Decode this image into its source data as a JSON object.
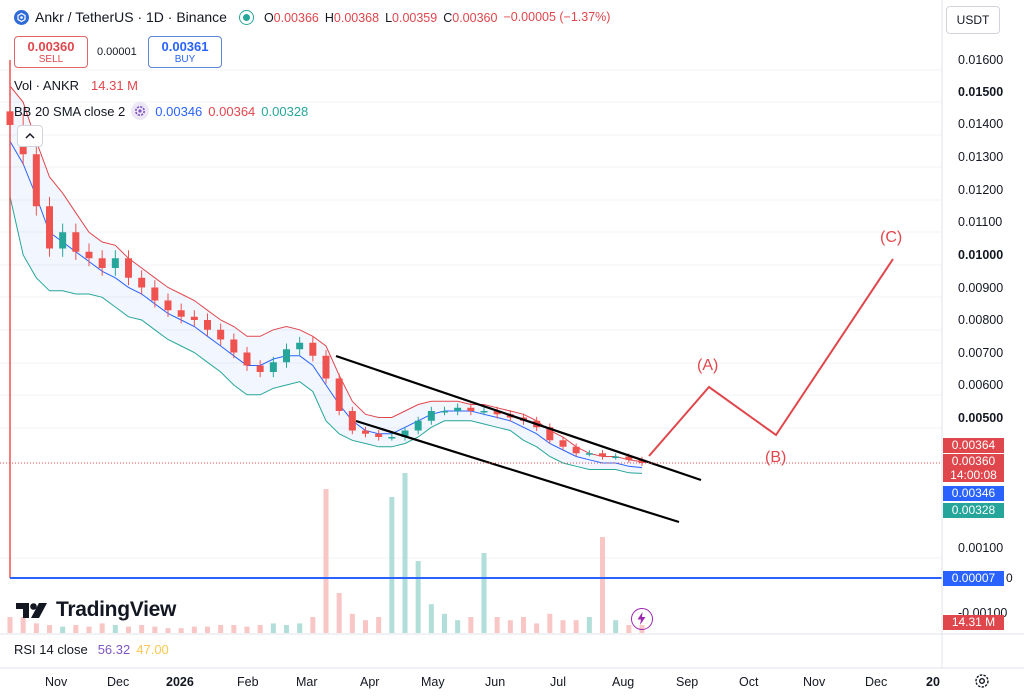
{
  "header": {
    "symbol": "Ankr / TetherUS · 1D · Binance",
    "open_label": "O",
    "open": "0.00366",
    "high_label": "H",
    "high": "0.00368",
    "low_label": "L",
    "low": "0.00359",
    "close_label": "C",
    "close": "0.00360",
    "change": "−0.00005 (−1.37%)"
  },
  "order": {
    "sell_price": "0.00360",
    "sell_label": "SELL",
    "spread": "0.00001",
    "buy_price": "0.00361",
    "buy_label": "BUY"
  },
  "indicators": {
    "vol_label": "Vol · ANKR",
    "vol_value": "14.31 M",
    "bb_label": "BB 20 SMA close 2",
    "bb_basis": "0.00346",
    "bb_upper": "0.00364",
    "bb_lower": "0.00328",
    "rsi_label": "RSI 14 close",
    "rsi_value": "56.32",
    "rsi_ma": "47.00"
  },
  "currency_selector": "USDT",
  "price_axis": {
    "ticks": [
      "0.01600",
      "0.01500",
      "0.01400",
      "0.01300",
      "0.01200",
      "0.01100",
      "0.01000",
      "0.00900",
      "0.00800",
      "0.00700",
      "0.00600",
      "0.00500",
      "0.00100",
      "-0.00100"
    ],
    "bold_ticks": [
      "0.01500",
      "0.01000",
      "0.00500"
    ],
    "tags": {
      "upper": "0.00364",
      "price": "0.00360",
      "countdown": "14:00:08",
      "basis": "0.00346",
      "lower": "0.00328",
      "line": "0.00007",
      "line_suffix": "0",
      "volume": "14.31 M"
    }
  },
  "time_axis": [
    "Nov",
    "Dec",
    "2026",
    "Feb",
    "Mar",
    "Apr",
    "May",
    "Jun",
    "Jul",
    "Aug",
    "Sep",
    "Oct",
    "Nov",
    "Dec",
    "20"
  ],
  "waves": [
    "(A)",
    "(B)",
    "(C)"
  ],
  "branding": "TradingView",
  "colors": {
    "up": "#26a69a",
    "down": "#ef5350",
    "bb_basis": "#2962ff",
    "bb_upper": "#e0474c",
    "bb_lower": "#26a69a",
    "horizontal_line": "#2962ff",
    "projection": "#e0474c",
    "channel": "#000000"
  },
  "chart_data": {
    "type": "candlestick",
    "price_unit": "USDT",
    "ylim": [
      -0.001,
      0.0167
    ],
    "series": {
      "close": [
        0.014,
        0.0131,
        0.0115,
        0.0102,
        0.0107,
        0.0101,
        0.0099,
        0.0096,
        0.0099,
        0.0093,
        0.009,
        0.0086,
        0.0083,
        0.0081,
        0.008,
        0.0077,
        0.0074,
        0.007,
        0.0066,
        0.0064,
        0.0067,
        0.0071,
        0.0073,
        0.0069,
        0.0062,
        0.0052,
        0.0046,
        0.0045,
        0.0044,
        0.0044,
        0.0046,
        0.0049,
        0.0052,
        0.0052,
        0.0053,
        0.0052,
        0.0052,
        0.0051,
        0.005,
        0.0049,
        0.0047,
        0.0043,
        0.0041,
        0.0039,
        0.0039,
        0.0038,
        0.0038,
        0.0037,
        0.0036
      ],
      "bb_basis": [
        0.0135,
        0.0128,
        0.0118,
        0.0107,
        0.0104,
        0.0101,
        0.0098,
        0.0095,
        0.0093,
        0.009,
        0.0088,
        0.0085,
        0.0082,
        0.008,
        0.0078,
        0.0075,
        0.0072,
        0.0069,
        0.0066,
        0.0066,
        0.0068,
        0.0069,
        0.0069,
        0.0066,
        0.006,
        0.0054,
        0.0049,
        0.0046,
        0.0045,
        0.0045,
        0.0047,
        0.0049,
        0.0051,
        0.0052,
        0.0052,
        0.0052,
        0.0051,
        0.005,
        0.0049,
        0.0047,
        0.0045,
        0.0042,
        0.004,
        0.0038,
        0.0037,
        0.0036,
        0.0036,
        0.0035,
        0.00346
      ],
      "bb_upper": [
        0.0152,
        0.0147,
        0.0135,
        0.0124,
        0.0119,
        0.0113,
        0.0107,
        0.0104,
        0.0103,
        0.0099,
        0.0096,
        0.0093,
        0.009,
        0.0088,
        0.0086,
        0.0083,
        0.008,
        0.0078,
        0.0075,
        0.0075,
        0.0077,
        0.0078,
        0.0077,
        0.0075,
        0.0072,
        0.0063,
        0.0055,
        0.0051,
        0.005,
        0.005,
        0.0052,
        0.0054,
        0.0055,
        0.0055,
        0.0055,
        0.0054,
        0.0054,
        0.0053,
        0.0052,
        0.0051,
        0.0049,
        0.0046,
        0.0044,
        0.0041,
        0.0039,
        0.0038,
        0.0038,
        0.0037,
        0.00364
      ],
      "bb_lower": [
        0.0118,
        0.01,
        0.0093,
        0.0089,
        0.0089,
        0.0088,
        0.0088,
        0.0087,
        0.0084,
        0.0081,
        0.008,
        0.0077,
        0.0074,
        0.0072,
        0.007,
        0.0067,
        0.0064,
        0.006,
        0.0057,
        0.0057,
        0.0059,
        0.006,
        0.0061,
        0.0058,
        0.0049,
        0.0045,
        0.0043,
        0.0042,
        0.0041,
        0.0041,
        0.0042,
        0.0044,
        0.0047,
        0.0049,
        0.0049,
        0.0049,
        0.0048,
        0.0047,
        0.0046,
        0.0043,
        0.0041,
        0.0038,
        0.0036,
        0.0035,
        0.0034,
        0.0034,
        0.0034,
        0.0033,
        0.00328
      ]
    },
    "volume_relative": [
      0.1,
      0.1,
      0.06,
      0.05,
      0.04,
      0.05,
      0.04,
      0.06,
      0.05,
      0.04,
      0.05,
      0.04,
      0.03,
      0.03,
      0.04,
      0.04,
      0.05,
      0.05,
      0.04,
      0.05,
      0.06,
      0.05,
      0.06,
      0.1,
      0.9,
      0.25,
      0.12,
      0.08,
      0.1,
      0.85,
      1.0,
      0.45,
      0.18,
      0.12,
      0.08,
      0.1,
      0.5,
      0.1,
      0.08,
      0.1,
      0.06,
      0.12,
      0.08,
      0.08,
      0.1,
      0.6,
      0.08,
      0.05,
      0.05
    ],
    "drawings": {
      "channel": [
        [
          [
            "Mar",
            0.0069
          ],
          [
            "Aug",
            0.0033
          ]
        ],
        [
          [
            "Mar",
            0.0049
          ],
          [
            "Aug",
            0.0015
          ]
        ]
      ],
      "horizontal_line": 7e-05,
      "projection": [
        [
          "Aug",
          0.0037
        ],
        [
          "(A)",
          0.0059
        ],
        [
          "(B)",
          0.0045
        ],
        [
          "(C)",
          0.0099
        ]
      ]
    },
    "xlabel": "",
    "ylabel": ""
  }
}
